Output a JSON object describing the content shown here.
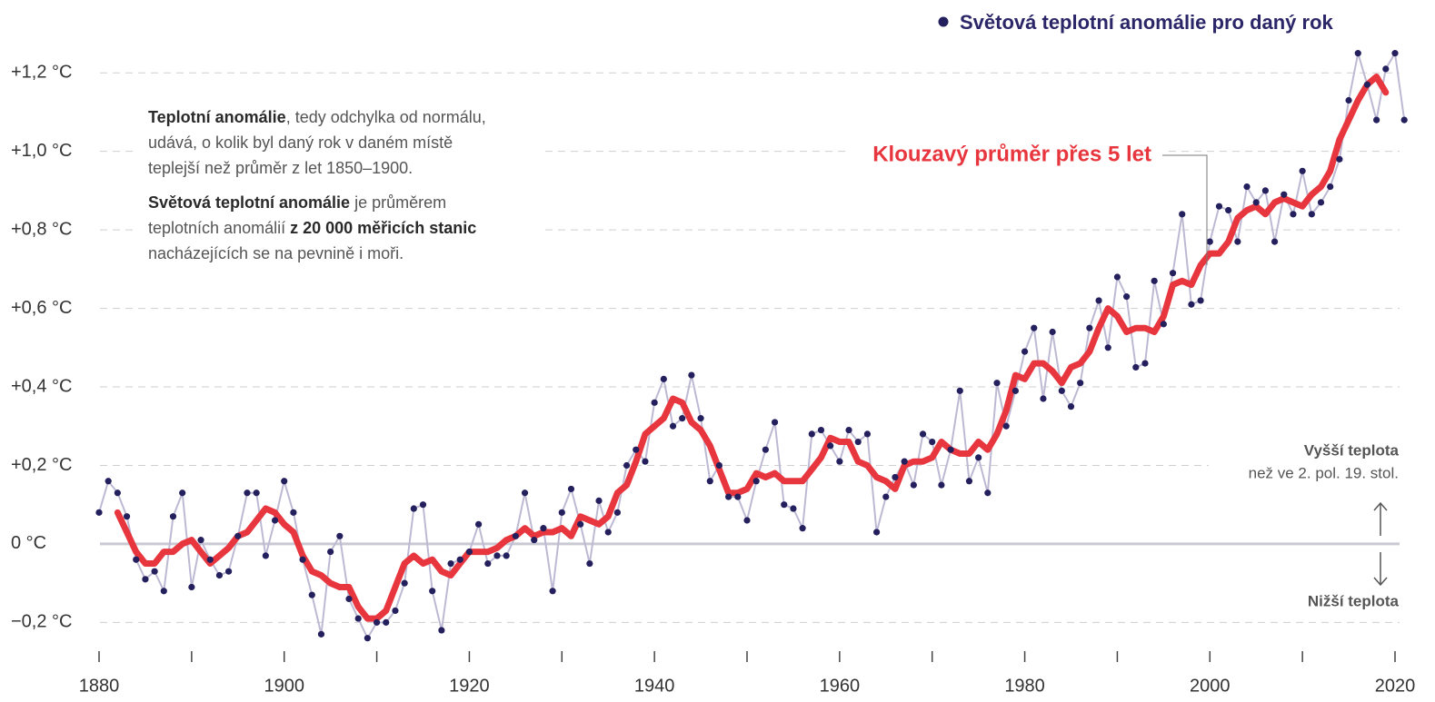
{
  "chart_data": {
    "type": "line",
    "x": [
      1880,
      1881,
      1882,
      1883,
      1884,
      1885,
      1886,
      1887,
      1888,
      1889,
      1890,
      1891,
      1892,
      1893,
      1894,
      1895,
      1896,
      1897,
      1898,
      1899,
      1900,
      1901,
      1902,
      1903,
      1904,
      1905,
      1906,
      1907,
      1908,
      1909,
      1910,
      1911,
      1912,
      1913,
      1914,
      1915,
      1916,
      1917,
      1918,
      1919,
      1920,
      1921,
      1922,
      1923,
      1924,
      1925,
      1926,
      1927,
      1928,
      1929,
      1930,
      1931,
      1932,
      1933,
      1934,
      1935,
      1936,
      1937,
      1938,
      1939,
      1940,
      1941,
      1942,
      1943,
      1944,
      1945,
      1946,
      1947,
      1948,
      1949,
      1950,
      1951,
      1952,
      1953,
      1954,
      1955,
      1956,
      1957,
      1958,
      1959,
      1960,
      1961,
      1962,
      1963,
      1964,
      1965,
      1966,
      1967,
      1968,
      1969,
      1970,
      1971,
      1972,
      1973,
      1974,
      1975,
      1976,
      1977,
      1978,
      1979,
      1980,
      1981,
      1982,
      1983,
      1984,
      1985,
      1986,
      1987,
      1988,
      1989,
      1990,
      1991,
      1992,
      1993,
      1994,
      1995,
      1996,
      1997,
      1998,
      1999,
      2000,
      2001,
      2002,
      2003,
      2004,
      2005,
      2006,
      2007,
      2008,
      2009,
      2010,
      2011,
      2012,
      2013,
      2014,
      2015,
      2016,
      2017,
      2018,
      2019,
      2020,
      2021
    ],
    "series": [
      {
        "name": "Světová teplotní anomálie pro daný rok",
        "color": "#24205e",
        "line_color": "#bdb9d3",
        "values": [
          0.08,
          0.16,
          0.13,
          0.07,
          -0.04,
          -0.09,
          -0.07,
          -0.12,
          0.07,
          0.13,
          -0.11,
          0.01,
          -0.04,
          -0.08,
          -0.07,
          0.02,
          0.13,
          0.13,
          -0.03,
          0.06,
          0.16,
          0.08,
          -0.04,
          -0.13,
          -0.23,
          -0.02,
          0.02,
          -0.14,
          -0.19,
          -0.24,
          -0.2,
          -0.2,
          -0.17,
          -0.1,
          0.09,
          0.1,
          -0.12,
          -0.22,
          -0.05,
          -0.04,
          -0.02,
          0.05,
          -0.05,
          -0.03,
          -0.03,
          0.02,
          0.13,
          0.01,
          0.04,
          -0.12,
          0.08,
          0.14,
          0.05,
          -0.05,
          0.11,
          0.03,
          0.08,
          0.2,
          0.24,
          0.21,
          0.36,
          0.42,
          0.3,
          0.32,
          0.43,
          0.32,
          0.16,
          0.2,
          0.12,
          0.12,
          0.06,
          0.16,
          0.24,
          0.31,
          0.1,
          0.09,
          0.04,
          0.28,
          0.29,
          0.25,
          0.21,
          0.29,
          0.26,
          0.28,
          0.03,
          0.12,
          0.17,
          0.21,
          0.15,
          0.28,
          0.26,
          0.15,
          0.24,
          0.39,
          0.16,
          0.22,
          0.13,
          0.41,
          0.3,
          0.39,
          0.49,
          0.55,
          0.37,
          0.54,
          0.39,
          0.35,
          0.41,
          0.55,
          0.62,
          0.5,
          0.68,
          0.63,
          0.45,
          0.46,
          0.67,
          0.56,
          0.69,
          0.84,
          0.61,
          0.62,
          0.77,
          0.86,
          0.85,
          0.77,
          0.91,
          0.87,
          0.9,
          0.77,
          0.89,
          0.84,
          0.95,
          0.84,
          0.87,
          0.91,
          0.98,
          1.13,
          1.25,
          1.17,
          1.08,
          1.21,
          1.25,
          1.08
        ]
      },
      {
        "name": "Klouzavý průměr přes 5 let",
        "color": "#e8363f",
        "values": [
          null,
          null,
          0.08,
          0.03,
          -0.02,
          -0.05,
          -0.05,
          -0.02,
          -0.02,
          0.0,
          0.01,
          -0.02,
          -0.05,
          -0.03,
          -0.01,
          0.02,
          0.03,
          0.06,
          0.09,
          0.08,
          0.05,
          0.03,
          -0.03,
          -0.07,
          -0.08,
          -0.1,
          -0.11,
          -0.11,
          -0.16,
          -0.19,
          -0.19,
          -0.17,
          -0.11,
          -0.05,
          -0.03,
          -0.05,
          -0.04,
          -0.07,
          -0.08,
          -0.05,
          -0.02,
          -0.02,
          -0.02,
          -0.01,
          0.01,
          0.02,
          0.04,
          0.02,
          0.03,
          0.03,
          0.04,
          0.02,
          0.07,
          0.06,
          0.05,
          0.07,
          0.13,
          0.15,
          0.21,
          0.28,
          0.3,
          0.32,
          0.37,
          0.36,
          0.31,
          0.29,
          0.25,
          0.19,
          0.13,
          0.13,
          0.14,
          0.18,
          0.17,
          0.18,
          0.16,
          0.16,
          0.16,
          0.19,
          0.22,
          0.27,
          0.26,
          0.26,
          0.21,
          0.2,
          0.17,
          0.16,
          0.14,
          0.2,
          0.21,
          0.21,
          0.22,
          0.26,
          0.24,
          0.23,
          0.23,
          0.26,
          0.24,
          0.28,
          0.34,
          0.43,
          0.42,
          0.46,
          0.46,
          0.44,
          0.41,
          0.45,
          0.46,
          0.49,
          0.55,
          0.6,
          0.58,
          0.54,
          0.55,
          0.55,
          0.54,
          0.58,
          0.66,
          0.67,
          0.66,
          0.71,
          0.74,
          0.74,
          0.77,
          0.83,
          0.85,
          0.86,
          0.84,
          0.87,
          0.88,
          0.87,
          0.86,
          0.89,
          0.91,
          0.95,
          1.03,
          1.08,
          1.13,
          1.17,
          1.19,
          1.15,
          null,
          null
        ]
      }
    ],
    "xlim": [
      1880,
      2020
    ],
    "ylim": [
      -0.25,
      1.3
    ],
    "xticks": [
      1880,
      1900,
      1920,
      1940,
      1960,
      1980,
      2000,
      2020
    ],
    "xticks_minor": [
      1890,
      1910,
      1930,
      1950,
      1970,
      1990,
      2010
    ],
    "yticks": [
      {
        "value": -0.2,
        "label": "−0,2 °C"
      },
      {
        "value": 0,
        "label": "0 °C"
      },
      {
        "value": 0.2,
        "label": "+0,2 °C"
      },
      {
        "value": 0.4,
        "label": "+0,4 °C"
      },
      {
        "value": 0.6,
        "label": "+0,6 °C"
      },
      {
        "value": 0.8,
        "label": "+0,8 °C"
      },
      {
        "value": 1.0,
        "label": "+1,0 °C"
      },
      {
        "value": 1.2,
        "label": "+1,2 °C"
      }
    ],
    "grid": true,
    "annotation": [
      [
        [
          {
            "text": "Teplotní anomálie",
            "bold": true
          },
          {
            "text": ", tedy odchylka od normálu,"
          }
        ],
        [
          {
            "text": "udává, o kolik byl daný rok v daném místě"
          }
        ],
        [
          {
            "text": "teplejší než průměr z let 1850–1900."
          }
        ]
      ],
      [
        [
          {
            "text": "Světová teplotní anomálie",
            "bold": true
          },
          {
            "text": " je průměrem"
          }
        ],
        [
          {
            "text": "teplotních anomálií "
          },
          {
            "text": "z 20 000 měřicích stanic",
            "bold": true
          }
        ],
        [
          {
            "text": "nacházejících se na pevnině i moři."
          }
        ]
      ]
    ],
    "side_labels": {
      "above_title": "Vyšší teplota",
      "above_text": "než ve 2. pol. 19. stol.",
      "below_title": "Nižší teplota"
    }
  }
}
